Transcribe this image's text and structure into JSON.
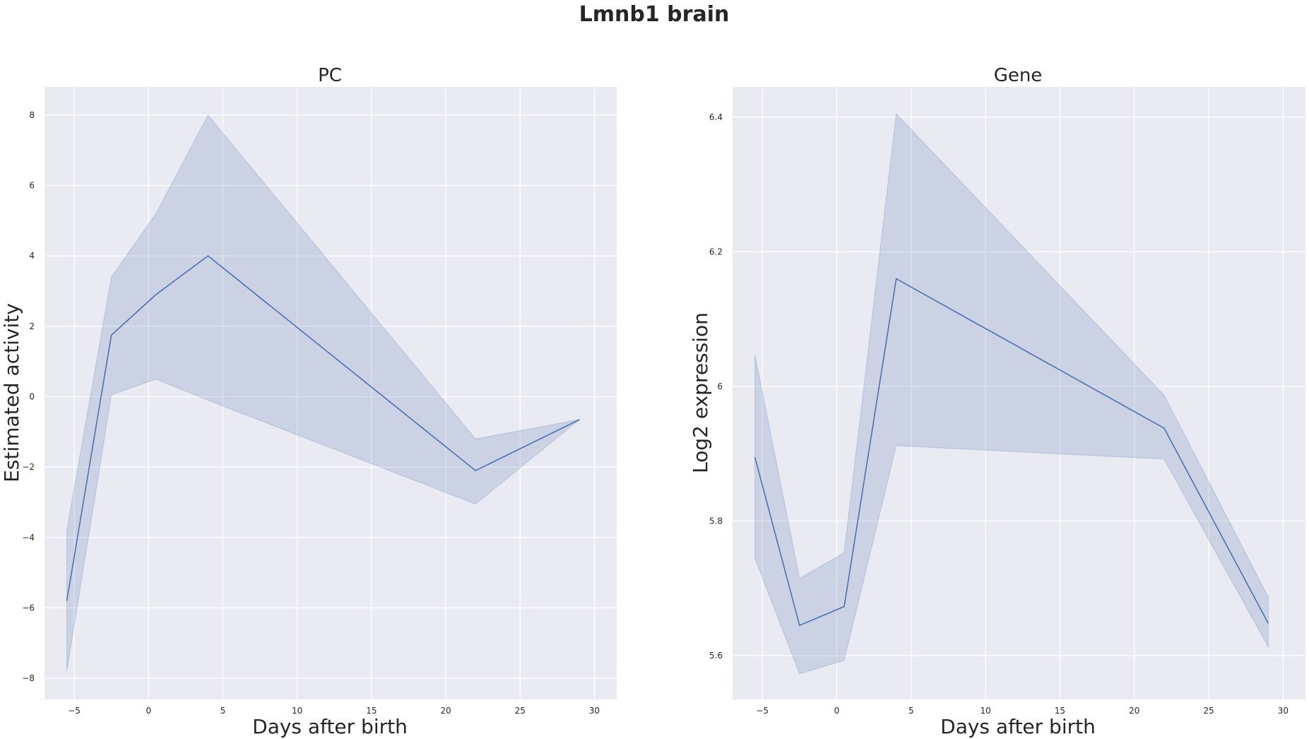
{
  "figure": {
    "title": "Lmnb1 brain"
  },
  "chart_data": [
    {
      "type": "line",
      "title": "PC",
      "xlabel": "Days after birth",
      "ylabel": "Estimated activity",
      "xlim": [
        -7,
        31.5
      ],
      "ylim": [
        -8.6,
        8.8
      ],
      "xticks": [
        -5,
        0,
        5,
        10,
        15,
        20,
        25,
        30
      ],
      "yticks": [
        -8,
        -6,
        -4,
        -2,
        0,
        2,
        4,
        6,
        8
      ],
      "grid": true,
      "legend": "none",
      "colors": {
        "background": "#eaeaf2",
        "line": "#4c72b0",
        "band": "#4c72b0"
      },
      "x": [
        -5.5,
        -2.5,
        0.5,
        4,
        22,
        29
      ],
      "y": [
        -5.8,
        1.75,
        2.9,
        4.0,
        -2.1,
        -0.65
      ],
      "lower": [
        -7.8,
        0.05,
        0.5,
        -0.1,
        -3.05,
        -0.65
      ],
      "upper": [
        -3.8,
        3.4,
        5.2,
        8.0,
        -1.2,
        -0.65
      ]
    },
    {
      "type": "line",
      "title": "Gene",
      "xlabel": "Days after birth",
      "ylabel": "Log2 expression",
      "xlim": [
        -7,
        31.5
      ],
      "ylim": [
        5.535,
        6.445
      ],
      "xticks": [
        -5,
        0,
        5,
        10,
        15,
        20,
        25,
        30
      ],
      "yticks": [
        5.6,
        5.8,
        6.0,
        6.2,
        6.4
      ],
      "grid": true,
      "legend": "none",
      "colors": {
        "background": "#eaeaf2",
        "line": "#4c72b0",
        "band": "#4c72b0"
      },
      "x": [
        -5.5,
        -2.5,
        0.5,
        4,
        22,
        29
      ],
      "y": [
        5.895,
        5.645,
        5.673,
        6.16,
        5.938,
        5.648
      ],
      "lower": [
        5.745,
        5.573,
        5.593,
        5.912,
        5.892,
        5.613
      ],
      "upper": [
        6.047,
        5.715,
        5.753,
        6.405,
        5.987,
        5.687
      ]
    }
  ]
}
